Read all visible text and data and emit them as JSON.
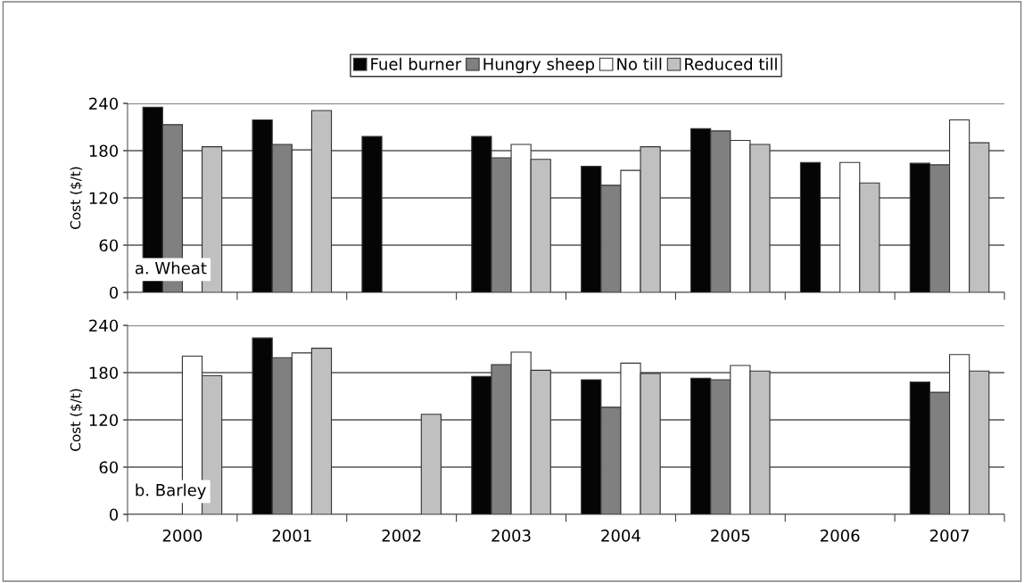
{
  "chart_data": [
    {
      "type": "bar",
      "categories": [
        "2000",
        "2001",
        "2002",
        "2003",
        "2004",
        "2005",
        "2006",
        "2007"
      ],
      "ylabel": "Cost ($/t)",
      "ylim": [
        0,
        240
      ],
      "yticks": [
        0,
        60,
        120,
        180,
        240
      ],
      "grid": "y",
      "legend": "top",
      "tick_labels": "y",
      "annotations": [
        "a. Wheat"
      ],
      "series": [
        {
          "name": "Fuel burner",
          "color": "#050505",
          "values": [
            235,
            219,
            198,
            198,
            160,
            208,
            165,
            164
          ]
        },
        {
          "name": "Hungry sheep",
          "color": "#808080",
          "values": [
            213,
            188,
            null,
            171,
            136,
            205,
            null,
            162
          ]
        },
        {
          "name": "No till",
          "color": "#ffffff",
          "values": [
            null,
            181,
            null,
            188,
            155,
            193,
            165,
            219
          ]
        },
        {
          "name": "Reduced till",
          "color": "#c0c0c0",
          "values": [
            185,
            231,
            null,
            169,
            185,
            188,
            139,
            190
          ]
        }
      ]
    },
    {
      "type": "bar",
      "categories": [
        "2000",
        "2001",
        "2002",
        "2003",
        "2004",
        "2005",
        "2006",
        "2007"
      ],
      "ylabel": "Cost ($/t)",
      "ylim": [
        0,
        240
      ],
      "yticks": [
        0,
        60,
        120,
        180,
        240
      ],
      "grid": "y",
      "annotations": [
        "b. Barley"
      ],
      "series": [
        {
          "color": "#050505",
          "values": [
            null,
            224,
            null,
            175,
            171,
            173,
            null,
            168
          ]
        },
        {
          "color": "#808080",
          "values": [
            null,
            199,
            null,
            190,
            136,
            171,
            null,
            155
          ]
        },
        {
          "color": "#ffffff",
          "values": [
            201,
            205,
            null,
            206,
            192,
            189,
            null,
            203
          ]
        },
        {
          "color": "#c0c0c0",
          "values": [
            176,
            211,
            127,
            183,
            179,
            182,
            null,
            182
          ]
        }
      ]
    }
  ]
}
